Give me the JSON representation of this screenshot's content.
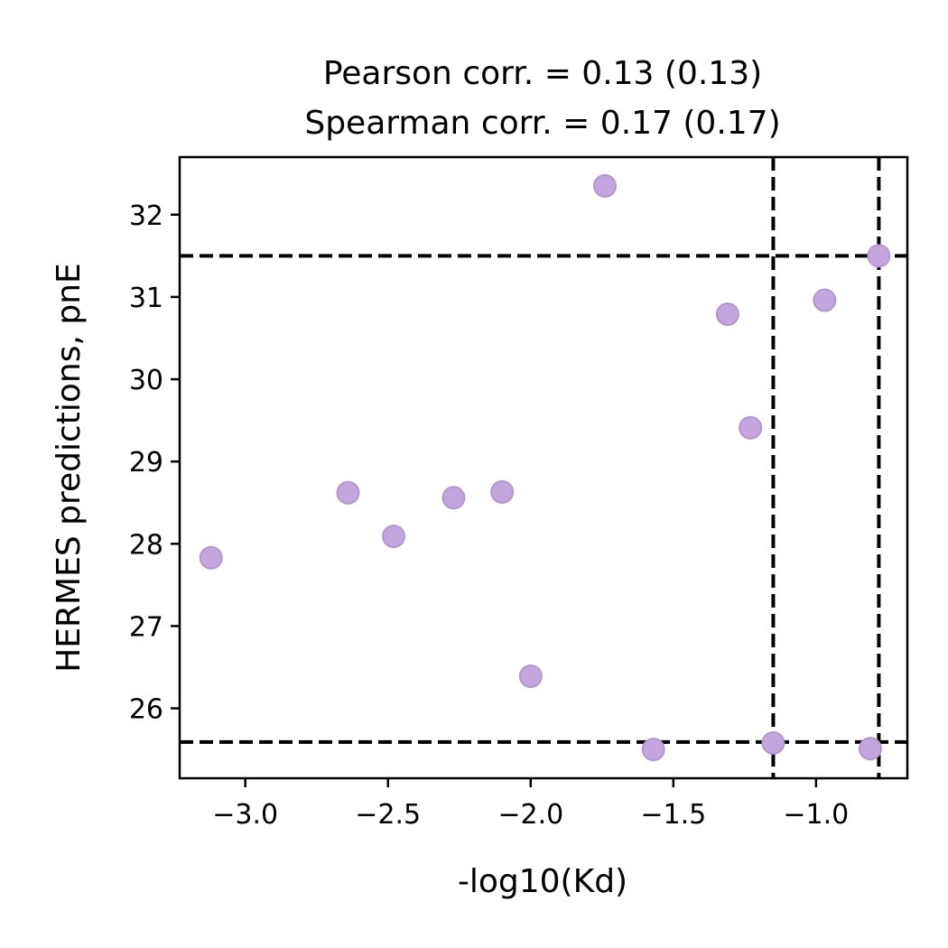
{
  "chart_data": {
    "type": "scatter",
    "title": [
      "Pearson corr. = 0.13 (0.13)",
      "Spearman corr. = 0.17 (0.17)"
    ],
    "xlabel": "-log10(Kd)",
    "ylabel": "HERMES predictions, pnE",
    "xlim": [
      -3.23,
      -0.68
    ],
    "ylim": [
      25.15,
      32.7
    ],
    "xticks": [
      -3.0,
      -2.5,
      -2.0,
      -1.5,
      -1.0
    ],
    "xtick_labels": [
      "−3.0",
      "−2.5",
      "−2.0",
      "−1.5",
      "−1.0"
    ],
    "yticks": [
      26,
      27,
      28,
      29,
      30,
      31,
      32
    ],
    "ytick_labels": [
      "26",
      "27",
      "28",
      "29",
      "30",
      "31",
      "32"
    ],
    "grid": false,
    "marker_color": "#c3a6dd",
    "marker_edge_color": "#b497d0",
    "reference_line_color": "#000000",
    "reference_lines": {
      "vertical_x": [
        -1.15,
        -0.78
      ],
      "horizontal_y": [
        31.5,
        25.59
      ]
    },
    "points": [
      {
        "x": -3.12,
        "y": 27.83
      },
      {
        "x": -2.64,
        "y": 28.62
      },
      {
        "x": -2.48,
        "y": 28.09
      },
      {
        "x": -2.27,
        "y": 28.56
      },
      {
        "x": -2.1,
        "y": 28.63
      },
      {
        "x": -2.0,
        "y": 26.39
      },
      {
        "x": -1.74,
        "y": 32.35
      },
      {
        "x": -1.57,
        "y": 25.5
      },
      {
        "x": -1.31,
        "y": 30.79
      },
      {
        "x": -1.23,
        "y": 29.41
      },
      {
        "x": -1.15,
        "y": 25.58
      },
      {
        "x": -0.97,
        "y": 30.96
      },
      {
        "x": -0.81,
        "y": 25.51
      },
      {
        "x": -0.78,
        "y": 31.5
      }
    ]
  }
}
